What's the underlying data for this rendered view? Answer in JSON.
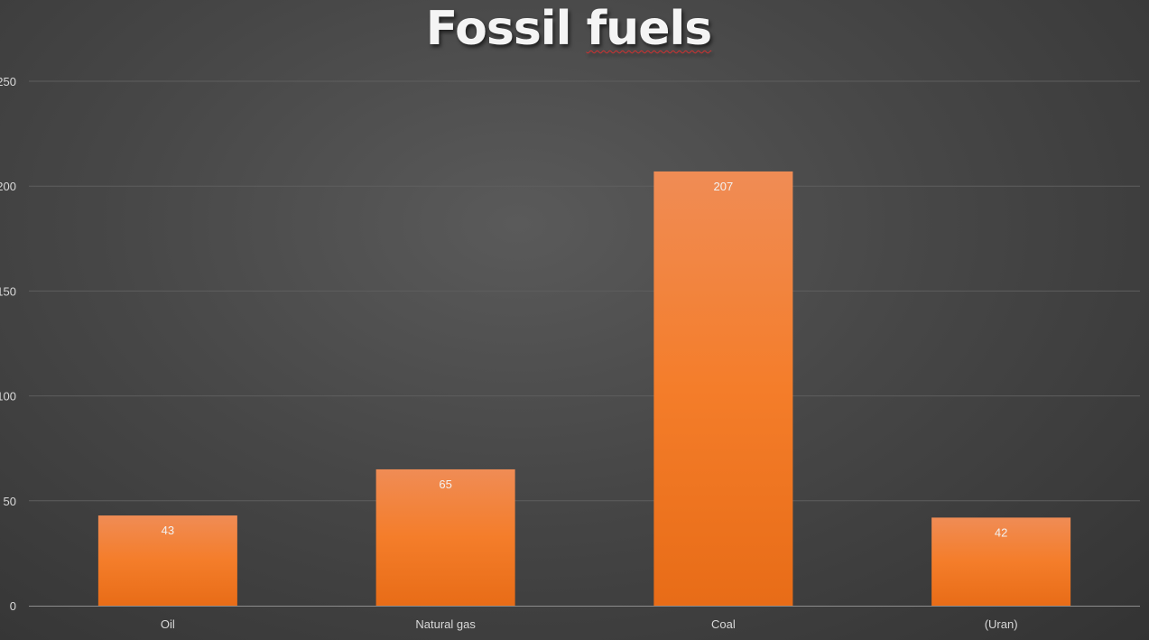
{
  "chart_data": {
    "type": "bar",
    "title_part1": "Fossil",
    "title_part2": "fuels",
    "categories": [
      "Oil",
      "Natural gas",
      "Coal",
      "(Uran)"
    ],
    "values": [
      43,
      65,
      207,
      42
    ],
    "ylim": [
      0,
      250
    ],
    "yticks": [
      0,
      50,
      100,
      150,
      200,
      250
    ],
    "grid": true,
    "data_labels": true,
    "colors": {
      "bar_top": "#f08c55",
      "bar_bottom": "#e86c17",
      "grid": "#5e5e5e",
      "axis": "#8c8c8c"
    }
  }
}
